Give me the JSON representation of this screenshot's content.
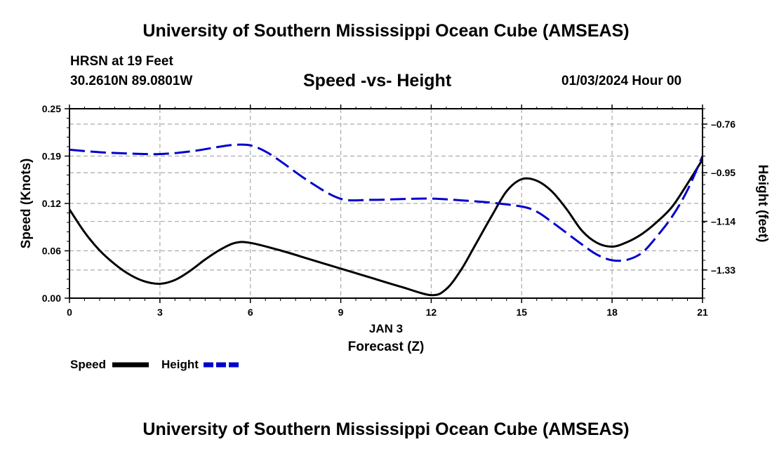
{
  "header": {
    "title": "University of Southern Mississippi Ocean Cube (AMSEAS)",
    "station": "HRSN at 19 Feet",
    "coords": "30.2610N  89.0801W",
    "chart_title": "Speed -vs- Height",
    "datetime": "01/03/2024 Hour 00"
  },
  "footer": {
    "title": "University of Southern Mississippi Ocean Cube (AMSEAS)"
  },
  "colors": {
    "speed": "#000000",
    "height": "#0000cc",
    "grid": "#aaaaaa"
  },
  "chart_data": {
    "type": "line",
    "title": "Speed -vs- Height",
    "xlabel": "Forecast (Z)",
    "xlabel_date": "JAN 3",
    "ylabel": "Speed (Knots)",
    "ylabel_right": "Height (feet)",
    "xlim": [
      0,
      21
    ],
    "ylim": [
      0,
      0.25
    ],
    "ylim_right": [
      -1.44,
      -0.7
    ],
    "x_ticks": [
      0,
      3,
      6,
      9,
      12,
      15,
      18,
      21
    ],
    "x_tick_labels": [
      "0",
      "3",
      "6",
      "9",
      "12",
      "15",
      "18",
      "21"
    ],
    "y_ticks": [
      0,
      0.0625,
      0.125,
      0.1875,
      0.25
    ],
    "y_tick_labels": [
      "0.00",
      "0.06",
      "0.12",
      "0.19",
      "0.25"
    ],
    "y_right_ticks": [
      -1.33,
      -1.14,
      -0.95,
      -0.76
    ],
    "y_right_tick_labels": [
      "-1.33",
      "-1.14",
      "-0.95",
      "-0.76"
    ],
    "legend": [
      "Speed",
      "Height"
    ],
    "legend_position": "bottom-left",
    "series": [
      {
        "name": "Speed",
        "axis": "left",
        "style": "solid",
        "x": [
          0,
          0.5,
          1,
          1.5,
          2,
          2.5,
          3,
          3.5,
          4,
          4.5,
          5,
          5.5,
          6,
          7,
          8,
          9,
          10,
          11,
          12,
          12.5,
          13,
          13.5,
          14,
          14.5,
          15,
          15.5,
          16,
          16.5,
          17,
          17.5,
          18,
          18.5,
          19,
          19.5,
          20,
          20.5,
          21
        ],
        "values": [
          0.117,
          0.087,
          0.063,
          0.045,
          0.031,
          0.022,
          0.019,
          0.024,
          0.036,
          0.051,
          0.064,
          0.073,
          0.073,
          0.063,
          0.051,
          0.039,
          0.027,
          0.015,
          0.004,
          0.012,
          0.038,
          0.073,
          0.108,
          0.141,
          0.157,
          0.155,
          0.141,
          0.117,
          0.089,
          0.073,
          0.068,
          0.074,
          0.085,
          0.101,
          0.121,
          0.151,
          0.183
        ]
      },
      {
        "name": "Height",
        "axis": "right",
        "style": "dashed",
        "x": [
          0,
          1,
          2,
          3,
          4,
          5,
          5.5,
          6,
          6.5,
          7,
          8,
          9,
          10,
          11,
          12,
          13,
          14,
          15,
          15.5,
          16,
          17,
          17.5,
          18,
          18.5,
          19,
          19.5,
          20,
          20.5,
          21
        ],
        "values": [
          -0.86,
          -0.87,
          -0.875,
          -0.877,
          -0.867,
          -0.848,
          -0.841,
          -0.843,
          -0.867,
          -0.905,
          -0.988,
          -1.052,
          -1.056,
          -1.053,
          -1.051,
          -1.058,
          -1.067,
          -1.082,
          -1.102,
          -1.142,
          -1.23,
          -1.27,
          -1.292,
          -1.29,
          -1.262,
          -1.197,
          -1.12,
          -1.018,
          -0.885
        ]
      }
    ]
  }
}
